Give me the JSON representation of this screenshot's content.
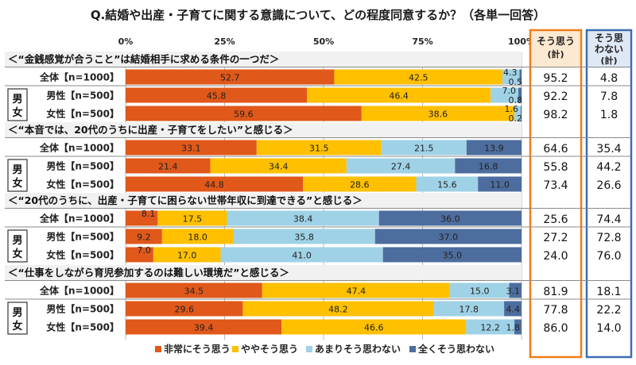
{
  "chart_data": {
    "type": "bar",
    "stacked": true,
    "orientation": "horizontal",
    "title": "Q.結婚や出産・子育てに関する意識について、どの程度同意するか？（各単一回答）",
    "x_ticks": [
      "0%",
      "25%",
      "50%",
      "75%",
      "100%"
    ],
    "xlim": [
      0,
      100
    ],
    "legend_position": "bottom",
    "series_names": [
      "非常にそう思う",
      "ややそう思う",
      "あまりそう思わない",
      "全くそう思わない"
    ],
    "colors": [
      "#e0581a",
      "#ffc000",
      "#9fd2e6",
      "#4d6d9e"
    ],
    "col_agree_header": [
      "そう思う",
      "(計)"
    ],
    "col_disagree_header": [
      "そう思",
      "わない",
      "(計)"
    ],
    "gender_label": [
      "男",
      "女"
    ],
    "sections": [
      {
        "question": "＜“金銭感覚が合うこと”は結婚相手に求める条件の一つだ＞",
        "rows": [
          {
            "label": "全体【n=1000】",
            "values": [
              52.7,
              42.5,
              4.3,
              0.5
            ],
            "agree": "95.2",
            "disagree": "4.8"
          },
          {
            "label": "男性【n=500】",
            "values": [
              45.8,
              46.4,
              7.0,
              0.8
            ],
            "agree": "92.2",
            "disagree": "7.8"
          },
          {
            "label": "女性【n=500】",
            "values": [
              59.6,
              38.6,
              1.6,
              0.2
            ],
            "agree": "98.2",
            "disagree": "1.8"
          }
        ]
      },
      {
        "question": "＜“本音では、20代のうちに出産・子育てをしたい”と感じる＞",
        "rows": [
          {
            "label": "全体【n=1000】",
            "values": [
              33.1,
              31.5,
              21.5,
              13.9
            ],
            "agree": "64.6",
            "disagree": "35.4"
          },
          {
            "label": "男性【n=500】",
            "values": [
              21.4,
              34.4,
              27.4,
              16.8
            ],
            "agree": "55.8",
            "disagree": "44.2"
          },
          {
            "label": "女性【n=500】",
            "values": [
              44.8,
              28.6,
              15.6,
              11.0
            ],
            "agree": "73.4",
            "disagree": "26.6"
          }
        ]
      },
      {
        "question": "＜“20代のうちに、出産・子育てに困らない世帯年収に到達できる”と感じる＞",
        "rows": [
          {
            "label": "全体【n=1000】",
            "values": [
              8.1,
              17.5,
              38.4,
              36.0
            ],
            "agree": "25.6",
            "disagree": "74.4"
          },
          {
            "label": "男性【n=500】",
            "values": [
              9.2,
              18.0,
              35.8,
              37.0
            ],
            "agree": "27.2",
            "disagree": "72.8"
          },
          {
            "label": "女性【n=500】",
            "values": [
              7.0,
              17.0,
              41.0,
              35.0
            ],
            "agree": "24.0",
            "disagree": "76.0"
          }
        ]
      },
      {
        "question": "＜“仕事をしながら育児参加するのは難しい環境だ”と感じる＞",
        "rows": [
          {
            "label": "全体【n=1000】",
            "values": [
              34.5,
              47.4,
              15.0,
              3.1
            ],
            "agree": "81.9",
            "disagree": "18.1"
          },
          {
            "label": "男性【n=500】",
            "values": [
              29.6,
              48.2,
              17.8,
              4.4
            ],
            "agree": "77.8",
            "disagree": "22.2"
          },
          {
            "label": "女性【n=500】",
            "values": [
              39.4,
              46.6,
              12.2,
              1.8
            ],
            "agree": "86.0",
            "disagree": "14.0"
          }
        ]
      }
    ]
  }
}
